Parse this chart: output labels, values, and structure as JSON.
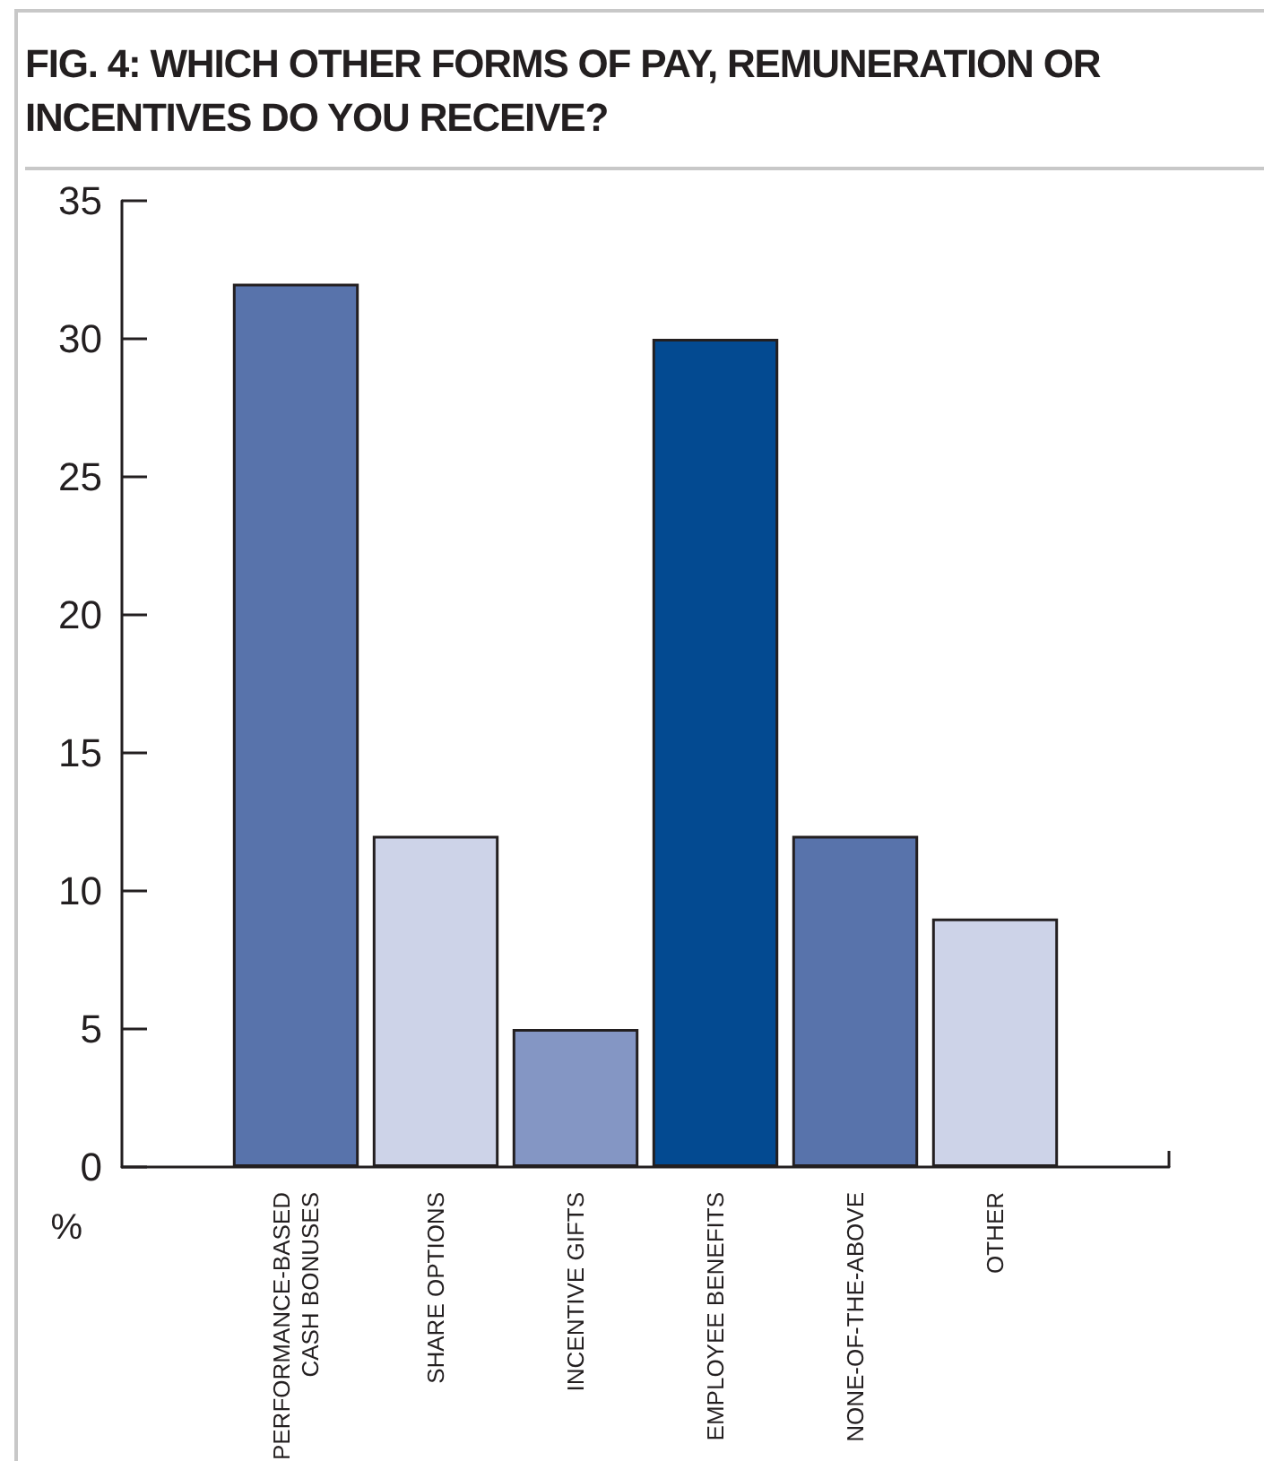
{
  "chart_data": {
    "type": "bar",
    "title": "FIG. 4: WHICH OTHER FORMS OF PAY, REMUNERATION OR INCENTIVES DO YOU RECEIVE?",
    "ylabel": "%",
    "categories": [
      "PERFORMANCE-BASED CASH BONUSES",
      "SHARE OPTIONS",
      "INCENTIVE GIFTS",
      "EMPLOYEE BENEFITS",
      "NONE-OF-THE-ABOVE",
      "OTHER"
    ],
    "values": [
      32,
      12,
      5,
      30,
      12,
      9
    ],
    "colors": [
      "#5873ab",
      "#cdd3e8",
      "#8496c4",
      "#034a91",
      "#5873ab",
      "#cdd3e8"
    ],
    "ylim": [
      0,
      35
    ],
    "yticks": [
      0,
      5,
      10,
      15,
      20,
      25,
      30,
      35
    ]
  }
}
